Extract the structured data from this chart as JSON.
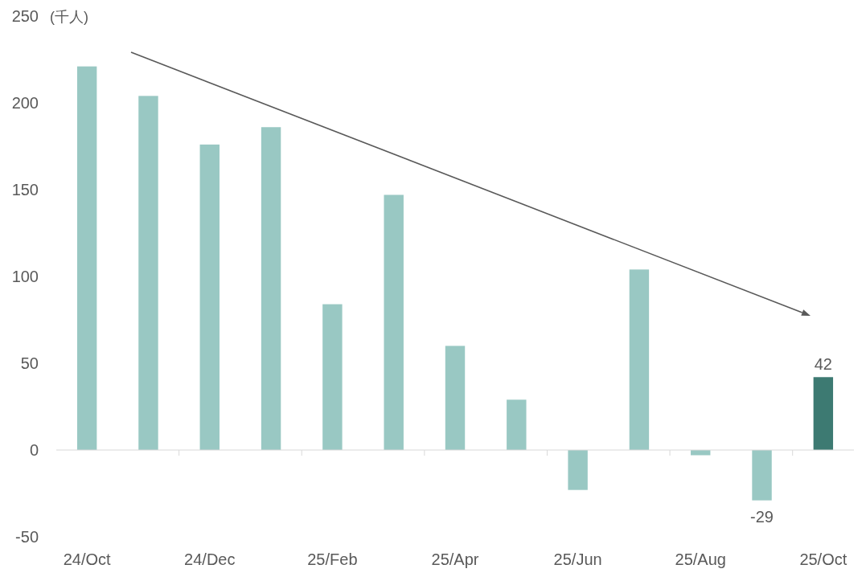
{
  "chart_data": {
    "type": "bar",
    "ylabel": "(千人)",
    "categories": [
      "24/Oct",
      null,
      "24/Dec",
      null,
      "25/Feb",
      null,
      "25/Apr",
      null,
      "25/Jun",
      null,
      "25/Aug",
      null,
      "25/Oct"
    ],
    "values": [
      221,
      204,
      176,
      186,
      84,
      147,
      60,
      29,
      -23,
      104,
      -3,
      -29,
      42
    ],
    "colors": [
      "#99c8c3",
      "#99c8c3",
      "#99c8c3",
      "#99c8c3",
      "#99c8c3",
      "#99c8c3",
      "#99c8c3",
      "#99c8c3",
      "#99c8c3",
      "#99c8c3",
      "#99c8c3",
      "#99c8c3",
      "#3d7a72"
    ],
    "value_labels": [
      null,
      null,
      null,
      null,
      null,
      null,
      null,
      null,
      null,
      null,
      null,
      "-29",
      "42"
    ],
    "ylim": [
      -50,
      250
    ],
    "yticks": [
      -50,
      0,
      50,
      100,
      150,
      200,
      250
    ]
  }
}
